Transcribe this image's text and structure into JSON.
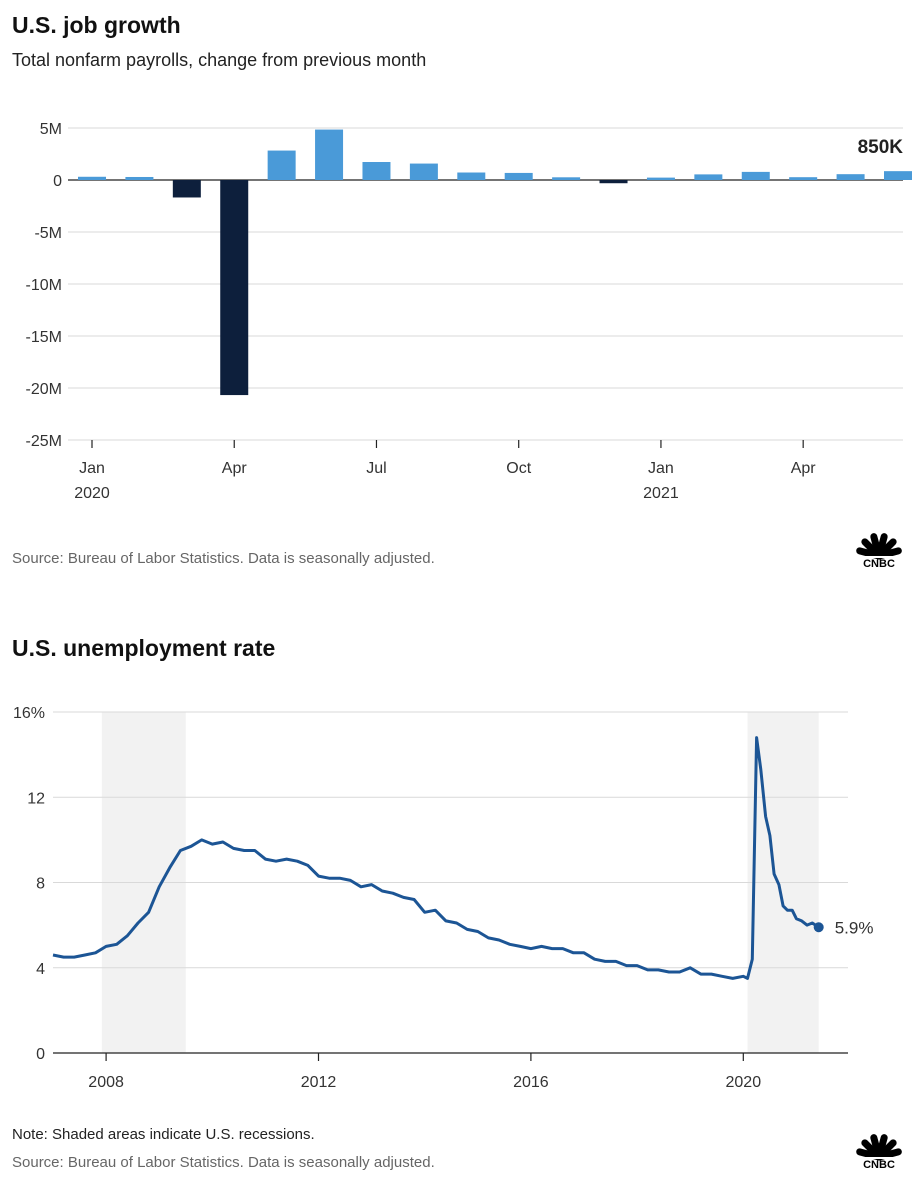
{
  "charts_text": {
    "job": {
      "title": "U.S. job growth",
      "subtitle": "Total nonfarm payrolls, change from previous month",
      "source": "Source: Bureau of Labor Statistics. Data is seasonally adjusted.",
      "value_label": "850K"
    },
    "unemp": {
      "title": "U.S. unemployment rate",
      "note": "Note: Shaded areas indicate U.S. recessions.",
      "source": "Source: Bureau of Labor Statistics. Data is seasonally adjusted.",
      "end_label": "5.9%"
    },
    "logo_word": "CNBC"
  },
  "colors": {
    "positive_bar": "#4a9ad8",
    "negative_bar": "#0d1f3c",
    "line": "#1c5595",
    "recession_shade": "#f2f2f2",
    "grid": "#d9d9d9"
  },
  "chart_data": [
    {
      "type": "bar",
      "title": "U.S. job growth",
      "subtitle": "Total nonfarm payrolls, change from previous month",
      "unit": "thousands of jobs",
      "categories": [
        "2020-01",
        "2020-02",
        "2020-03",
        "2020-04",
        "2020-05",
        "2020-06",
        "2020-07",
        "2020-08",
        "2020-09",
        "2020-10",
        "2020-11",
        "2020-12",
        "2021-01",
        "2021-02",
        "2021-03",
        "2021-04",
        "2021-05",
        "2021-06"
      ],
      "values": [
        310,
        290,
        -1680,
        -20680,
        2830,
        4850,
        1730,
        1580,
        720,
        680,
        260,
        -310,
        230,
        540,
        780,
        270,
        560,
        850
      ],
      "ylim": [
        -25000,
        5000
      ],
      "yticks": [
        {
          "value": 5000,
          "label": "5M"
        },
        {
          "value": 0,
          "label": "0"
        },
        {
          "value": -5000,
          "label": "-5M"
        },
        {
          "value": -10000,
          "label": "-10M"
        },
        {
          "value": -15000,
          "label": "-15M"
        },
        {
          "value": -20000,
          "label": "-20M"
        },
        {
          "value": -25000,
          "label": "-25M"
        }
      ],
      "xticks": [
        {
          "index": 0,
          "label": "Jan",
          "sublabel": "2020"
        },
        {
          "index": 3,
          "label": "Apr",
          "sublabel": ""
        },
        {
          "index": 6,
          "label": "Jul",
          "sublabel": ""
        },
        {
          "index": 9,
          "label": "Oct",
          "sublabel": ""
        },
        {
          "index": 12,
          "label": "Jan",
          "sublabel": "2021"
        },
        {
          "index": 15,
          "label": "Apr",
          "sublabel": ""
        }
      ],
      "annotation": {
        "index": 17,
        "label": "850K"
      },
      "grid": true
    },
    {
      "type": "line",
      "title": "U.S. unemployment rate",
      "x": [
        2007.0,
        2007.2,
        2007.4,
        2007.6,
        2007.8,
        2008.0,
        2008.2,
        2008.4,
        2008.6,
        2008.8,
        2009.0,
        2009.2,
        2009.4,
        2009.6,
        2009.8,
        2010.0,
        2010.2,
        2010.4,
        2010.6,
        2010.8,
        2011.0,
        2011.2,
        2011.4,
        2011.6,
        2011.8,
        2012.0,
        2012.2,
        2012.4,
        2012.6,
        2012.8,
        2013.0,
        2013.2,
        2013.4,
        2013.6,
        2013.8,
        2014.0,
        2014.2,
        2014.4,
        2014.6,
        2014.8,
        2015.0,
        2015.2,
        2015.4,
        2015.6,
        2015.8,
        2016.0,
        2016.2,
        2016.4,
        2016.6,
        2016.8,
        2017.0,
        2017.2,
        2017.4,
        2017.6,
        2017.8,
        2018.0,
        2018.2,
        2018.4,
        2018.6,
        2018.8,
        2019.0,
        2019.2,
        2019.4,
        2019.6,
        2019.8,
        2020.0,
        2020.08,
        2020.17,
        2020.25,
        2020.33,
        2020.42,
        2020.5,
        2020.58,
        2020.67,
        2020.75,
        2020.83,
        2020.92,
        2021.0,
        2021.1,
        2021.2,
        2021.3,
        2021.42
      ],
      "y": [
        4.6,
        4.5,
        4.5,
        4.6,
        4.7,
        5.0,
        5.1,
        5.5,
        6.1,
        6.6,
        7.8,
        8.7,
        9.5,
        9.7,
        10.0,
        9.8,
        9.9,
        9.6,
        9.5,
        9.5,
        9.1,
        9.0,
        9.1,
        9.0,
        8.8,
        8.3,
        8.2,
        8.2,
        8.1,
        7.8,
        7.9,
        7.6,
        7.5,
        7.3,
        7.2,
        6.6,
        6.7,
        6.2,
        6.1,
        5.8,
        5.7,
        5.4,
        5.3,
        5.1,
        5.0,
        4.9,
        5.0,
        4.9,
        4.9,
        4.7,
        4.7,
        4.4,
        4.3,
        4.3,
        4.1,
        4.1,
        3.9,
        3.9,
        3.8,
        3.8,
        4.0,
        3.7,
        3.7,
        3.6,
        3.5,
        3.6,
        3.5,
        4.4,
        14.8,
        13.3,
        11.1,
        10.2,
        8.4,
        7.9,
        6.9,
        6.7,
        6.7,
        6.3,
        6.2,
        6.0,
        6.1,
        5.9
      ],
      "xlim": [
        2007.0,
        2021.75
      ],
      "ylim": [
        0,
        16
      ],
      "yticks": [
        {
          "value": 0,
          "label": "0"
        },
        {
          "value": 4,
          "label": "4"
        },
        {
          "value": 8,
          "label": "8"
        },
        {
          "value": 12,
          "label": "12"
        },
        {
          "value": 16,
          "label": "16%"
        }
      ],
      "xticks": [
        {
          "value": 2008,
          "label": "2008"
        },
        {
          "value": 2012,
          "label": "2012"
        },
        {
          "value": 2016,
          "label": "2016"
        },
        {
          "value": 2020,
          "label": "2020"
        }
      ],
      "recessions": [
        [
          2007.92,
          2009.5
        ],
        [
          2020.08,
          2021.42
        ]
      ],
      "end_label": "5.9%",
      "grid": true
    }
  ]
}
